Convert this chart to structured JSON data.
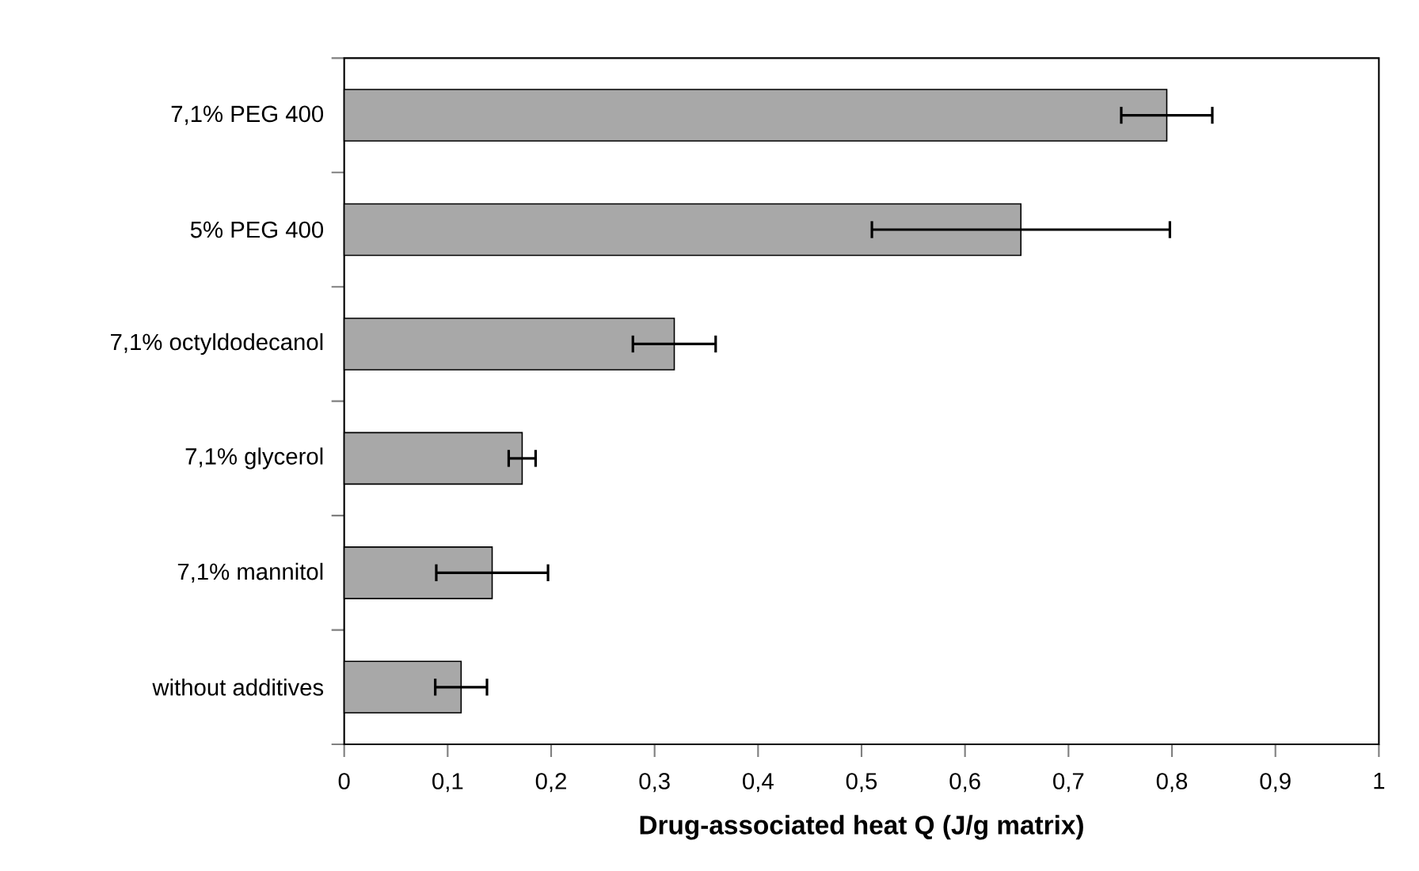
{
  "chart_data": {
    "type": "bar",
    "orientation": "horizontal",
    "xlabel": "Drug-associated heat Q (J/g matrix)",
    "categories": [
      "7,1% PEG 400",
      "5% PEG 400",
      "7,1% octyldodecanol",
      "7,1% glycerol",
      "7,1% mannitol",
      "without additives"
    ],
    "values": [
      0.795,
      0.654,
      0.319,
      0.172,
      0.143,
      0.113
    ],
    "errors": [
      0.044,
      0.144,
      0.04,
      0.013,
      0.054,
      0.025
    ],
    "color": "#a8a8a8",
    "xlim": [
      0,
      1
    ],
    "xticks": [
      0,
      {
        "value": 0.1,
        "label": "0,1"
      },
      {
        "value": 0.2,
        "label": "0,2"
      },
      {
        "value": 0.3,
        "label": "0,3"
      },
      {
        "value": 0.4,
        "label": "0,4"
      },
      {
        "value": 0.5,
        "label": "0,5"
      },
      {
        "value": 0.6,
        "label": "0,6"
      },
      {
        "value": 0.7,
        "label": "0,7"
      },
      {
        "value": 0.8,
        "label": "0,8"
      },
      {
        "value": 0.9,
        "label": "0,9"
      },
      1
    ]
  }
}
